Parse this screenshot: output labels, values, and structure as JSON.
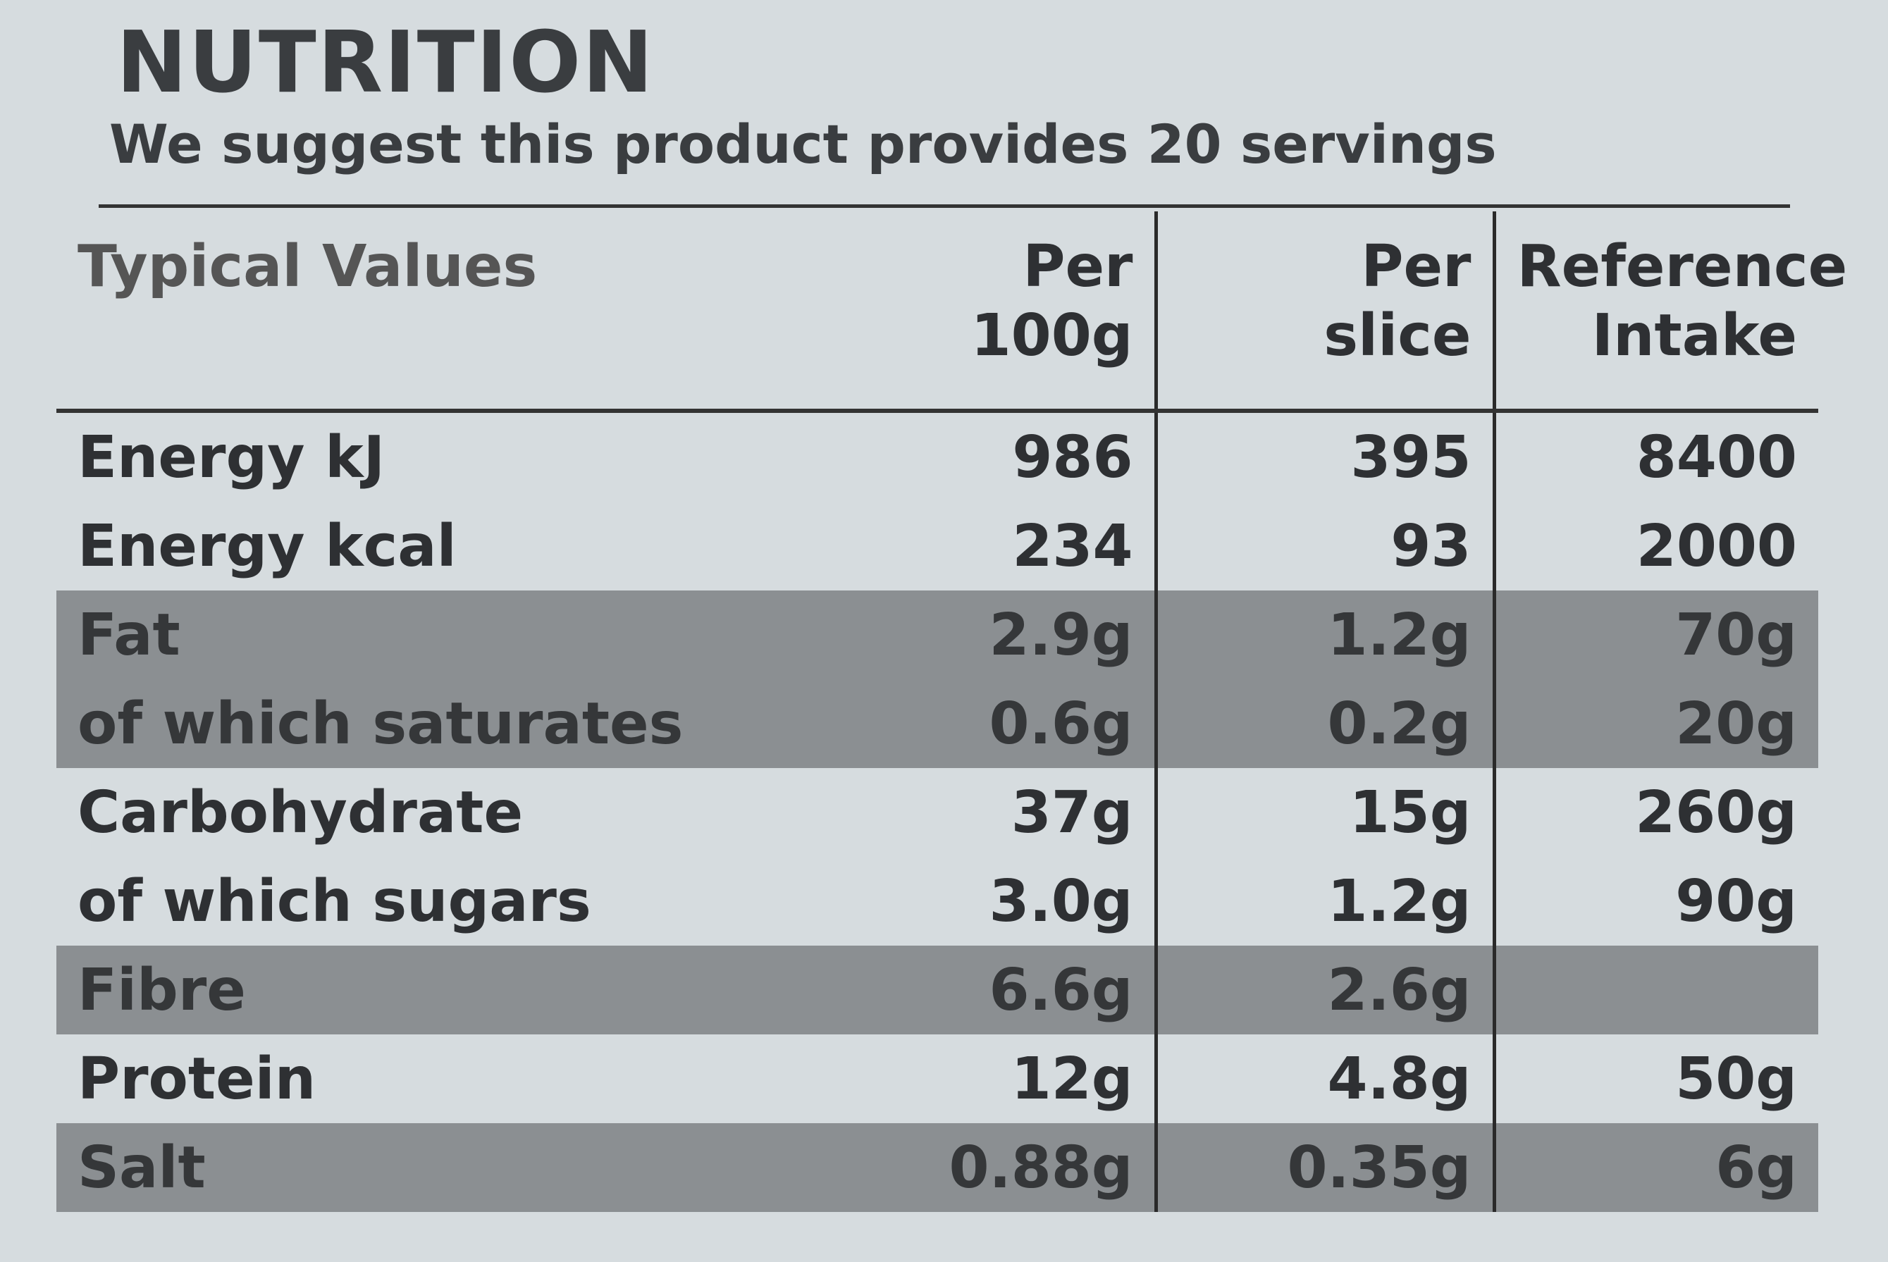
{
  "header": {
    "title": "NUTRITION",
    "subtitle": "We suggest this product provides 20 servings"
  },
  "table": {
    "columns": [
      [
        "Typical Values"
      ],
      [
        "Per",
        "100g"
      ],
      [
        "Per",
        "slice"
      ],
      [
        "Reference",
        "Intake"
      ]
    ],
    "rows": [
      [
        "Energy kJ",
        "986",
        "395",
        "8400"
      ],
      [
        "Energy kcal",
        "234",
        "93",
        "2000"
      ],
      [
        "Fat",
        "2.9g",
        "1.2g",
        "70g"
      ],
      [
        "of which saturates",
        "0.6g",
        "0.2g",
        "20g"
      ],
      [
        "Carbohydrate",
        "37g",
        "15g",
        "260g"
      ],
      [
        "of which sugars",
        "3.0g",
        "1.2g",
        "90g"
      ],
      [
        "Fibre",
        "6.6g",
        "2.6g",
        null
      ],
      [
        "Protein",
        "12g",
        "4.8g",
        "50g"
      ],
      [
        "Salt",
        "0.88g",
        "0.35g",
        "6g"
      ]
    ]
  }
}
